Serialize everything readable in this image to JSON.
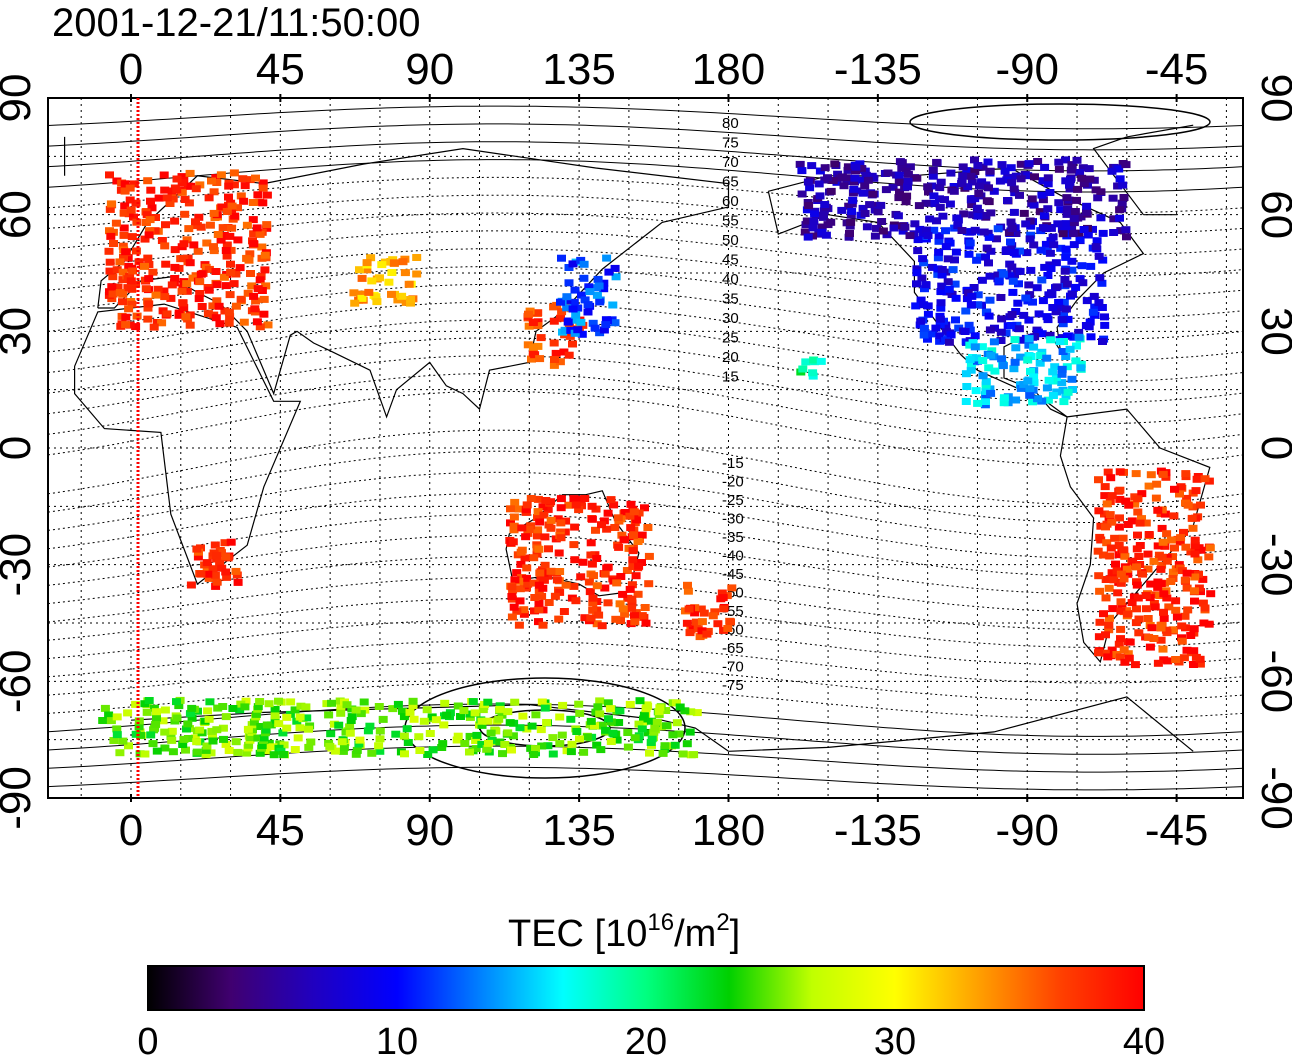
{
  "title": "2001-12-21/11:50:00",
  "map": {
    "top_lon_ticks": [
      "0",
      "45",
      "90",
      "135",
      "180",
      "-135",
      "-90",
      "-45"
    ],
    "bottom_lon_ticks": [
      "0",
      "45",
      "90",
      "135",
      "180",
      "-135",
      "-90",
      "-45"
    ],
    "left_lat_ticks": [
      "90",
      "60",
      "30",
      "0",
      "-30",
      "-60",
      "-90"
    ],
    "right_lat_ticks": [
      "90",
      "60",
      "30",
      "0",
      "-30",
      "-60",
      "-90"
    ],
    "magnetic_latitude_labels_north": [
      "80",
      "75",
      "70",
      "65",
      "60",
      "55",
      "50",
      "45",
      "40",
      "35",
      "30",
      "25",
      "20",
      "15"
    ],
    "magnetic_latitude_labels_south": [
      "-15",
      "-20",
      "-25",
      "-30",
      "-35",
      "-40",
      "-45",
      "-50",
      "-55",
      "-60",
      "-65",
      "-70",
      "-75"
    ],
    "terminator_color": "#ff0000",
    "gridline_style": "dotted"
  },
  "colorbar": {
    "label_main": "TEC  [10",
    "label_sup1": "16",
    "label_mid": "/m",
    "label_sup2": "2",
    "label_end": "]",
    "ticks": [
      "0",
      "10",
      "20",
      "30",
      "40"
    ],
    "min": 0,
    "max": 40,
    "colors": [
      "#000000",
      "#400070",
      "#2000c0",
      "#0000ff",
      "#0080ff",
      "#00ffff",
      "#00ff80",
      "#00d000",
      "#c0ff00",
      "#ffff00",
      "#ffa000",
      "#ff4000",
      "#ff0000"
    ]
  },
  "tec_regions": [
    {
      "name": "europe",
      "lon": [
        -8,
        40
      ],
      "lat": [
        32,
        72
      ],
      "tec": 38
    },
    {
      "name": "east-asia",
      "lon": [
        118,
        135
      ],
      "lat": [
        22,
        38
      ],
      "tec": 37
    },
    {
      "name": "japan",
      "lon": [
        128,
        145
      ],
      "lat": [
        30,
        50
      ],
      "tec": 12
    },
    {
      "name": "north-america",
      "lon": [
        -125,
        -68
      ],
      "lat": [
        28,
        58
      ],
      "tec": 9
    },
    {
      "name": "canada-north",
      "lon": [
        -160,
        -60
      ],
      "lat": [
        55,
        75
      ],
      "tec": 6
    },
    {
      "name": "central-america",
      "lon": [
        -110,
        -75
      ],
      "lat": [
        12,
        30
      ],
      "tec": 15
    },
    {
      "name": "south-america",
      "lon": [
        -70,
        -36
      ],
      "lat": [
        -55,
        -5
      ],
      "tec": 38
    },
    {
      "name": "australia",
      "lon": [
        112,
        155
      ],
      "lat": [
        -45,
        -12
      ],
      "tec": 38
    },
    {
      "name": "new-zealand",
      "lon": [
        165,
        180
      ],
      "lat": [
        -48,
        -34
      ],
      "tec": 38
    },
    {
      "name": "south-africa",
      "lon": [
        15,
        32
      ],
      "lat": [
        -35,
        -22
      ],
      "tec": 38
    },
    {
      "name": "central-asia",
      "lon": [
        65,
        85
      ],
      "lat": [
        37,
        50
      ],
      "tec": 33
    },
    {
      "name": "hawaii",
      "lon": [
        -160,
        -153
      ],
      "lat": [
        18,
        25
      ],
      "tec": 20
    },
    {
      "name": "antarctic-coast",
      "lon": [
        -10,
        170
      ],
      "lat": [
        -78,
        -64
      ],
      "tec": 25
    }
  ]
}
